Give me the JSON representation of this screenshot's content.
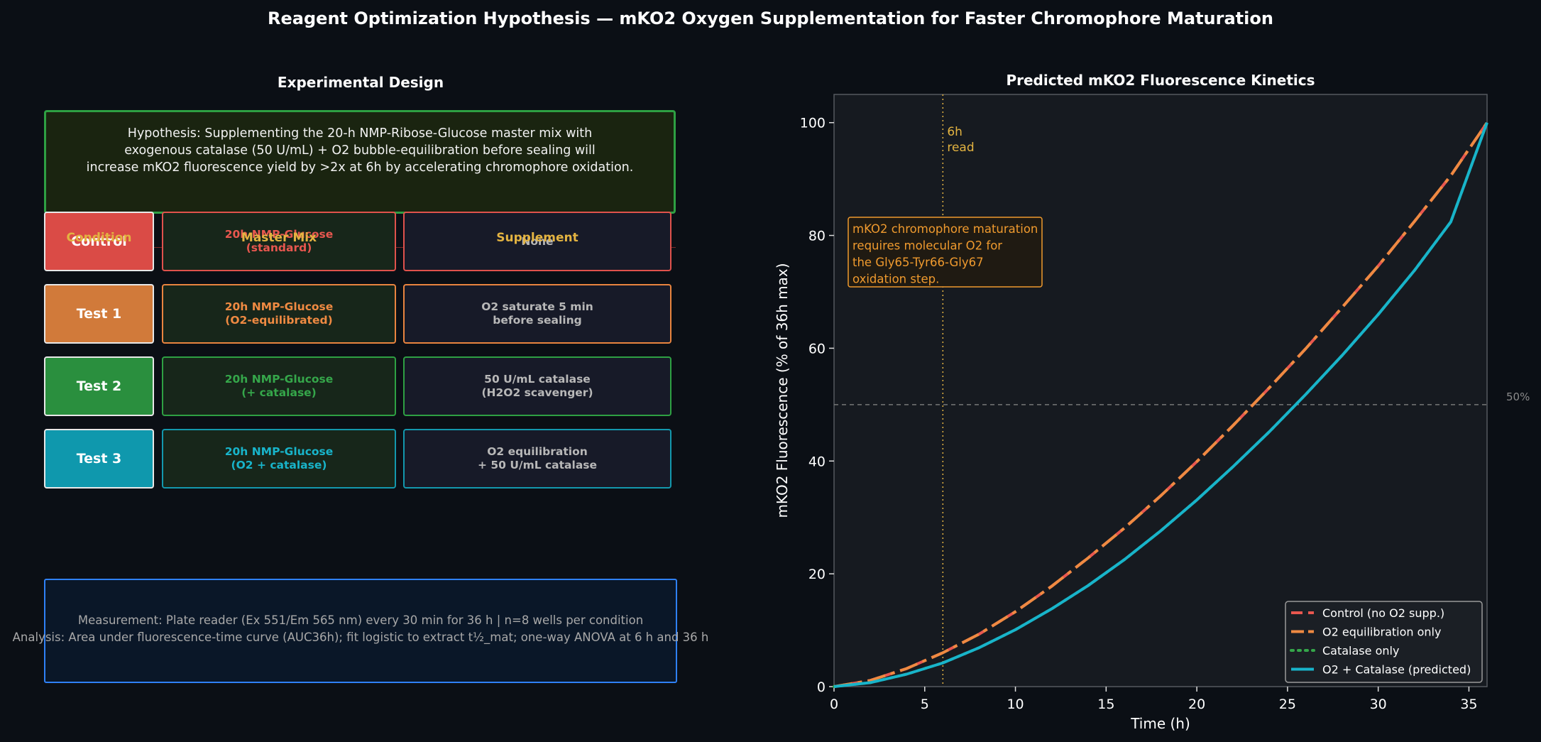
{
  "title": "Reagent Optimization Hypothesis — mKO2 Oxygen Supplementation for Faster Chromophore Maturation",
  "design": {
    "title": "Experimental Design",
    "hypothesis_lines": [
      "Hypothesis: Supplementing the 20-h NMP-Ribose-Glucose master mix with",
      "exogenous catalase (50 U/mL) + O2 bubble-equilibration before sealing will",
      "increase mKO2 fluorescence yield by >2x at 6h by accelerating chromophore oxidation."
    ],
    "headers": [
      "Condition",
      "Master Mix",
      "Supplement"
    ],
    "rows": [
      {
        "condition": "Control",
        "mix": [
          "20h NMP-Glucose",
          "(standard)"
        ],
        "supplement": [
          "None"
        ],
        "color": "#da4b46"
      },
      {
        "condition": "Test 1",
        "mix": [
          "20h NMP-Glucose",
          "(O2-equilibrated)"
        ],
        "supplement": [
          "O2 saturate 5 min",
          "before sealing"
        ],
        "color": "#d17a3a"
      },
      {
        "condition": "Test 2",
        "mix": [
          "20h NMP-Glucose",
          "(+ catalase)"
        ],
        "supplement": [
          "50 U/mL catalase",
          "(H2O2 scavenger)"
        ],
        "color": "#2a8f3e"
      },
      {
        "condition": "Test 3",
        "mix": [
          "20h NMP-Glucose",
          "(O2 + catalase)"
        ],
        "supplement": [
          "O2 equilibration",
          "+ 50 U/mL catalase"
        ],
        "color": "#0f98ad"
      }
    ],
    "mix_colors": [
      "#e8574f",
      "#ef8a42",
      "#35a64a",
      "#18b4ca"
    ],
    "border_colors": [
      "#e0524c",
      "#e9843f",
      "#2ea043",
      "#1398ad"
    ],
    "measurement_lines": [
      "Measurement: Plate reader (Ex 551/Em 565 nm) every 30 min for 36 h | n=8 wells per condition",
      "Analysis: Area under fluorescence-time curve (AUC36h); fit logistic to extract t½_mat; one-way ANOVA at 6 h and 36 h"
    ]
  },
  "chart_data": {
    "type": "line",
    "title": "Predicted mKO2 Fluorescence Kinetics",
    "xlabel": "Time (h)",
    "ylabel": "mKO2 Fluorescence (% of 36h max)",
    "xlim": [
      0,
      36
    ],
    "ylim": [
      0,
      105
    ],
    "xticks": [
      0,
      5,
      10,
      15,
      20,
      25,
      30,
      35
    ],
    "yticks": [
      0,
      20,
      40,
      60,
      80,
      100
    ],
    "grid": false,
    "legend_position": "bottom-right",
    "x": [
      0,
      2,
      4,
      6,
      8,
      10,
      12,
      14,
      16,
      18,
      20,
      22,
      24,
      26,
      28,
      30,
      32,
      34,
      36
    ],
    "series": [
      {
        "name": "Control (no O2 supp.)",
        "color": "#e8574f",
        "style": "dashed",
        "values": [
          0,
          1.1,
          3.2,
          6.0,
          9.3,
          13.3,
          17.8,
          22.8,
          28.1,
          33.8,
          39.9,
          46.3,
          53.0,
          59.9,
          67.2,
          74.6,
          82.5,
          90.6,
          100
        ]
      },
      {
        "name": "O2 equilibration only",
        "color": "#ef8a42",
        "style": "dashdot",
        "values": [
          0,
          1.1,
          3.2,
          6.0,
          9.3,
          13.3,
          17.8,
          22.8,
          28.1,
          33.8,
          39.9,
          46.3,
          53.0,
          59.9,
          67.2,
          74.6,
          82.5,
          90.6,
          100
        ]
      },
      {
        "name": "Catalase only",
        "color": "#35a64a",
        "style": "dotted",
        "values": [
          0,
          0.7,
          2.2,
          4.2,
          6.9,
          10.1,
          13.8,
          17.9,
          22.5,
          27.6,
          33.1,
          39.0,
          45.2,
          51.8,
          58.7,
          66.0,
          73.8,
          82.4,
          100
        ]
      },
      {
        "name": "O2 + Catalase (predicted)",
        "color": "#18b4ca",
        "style": "solid",
        "values": [
          0,
          0.7,
          2.2,
          4.2,
          6.9,
          10.1,
          13.8,
          17.9,
          22.5,
          27.6,
          33.1,
          39.0,
          45.2,
          51.8,
          58.7,
          66.0,
          73.8,
          82.4,
          100
        ]
      }
    ],
    "vline": {
      "x": 6,
      "label_lines": [
        "6h",
        "read"
      ],
      "color": "#e3b341"
    },
    "hline": {
      "y": 50,
      "label": "50%",
      "color": "#777777"
    },
    "annotation": {
      "lines": [
        "mKO2 chromophore maturation",
        "requires molecular O2 for",
        "the Gly65-Tyr66-Gly67",
        "oxidation step."
      ],
      "x": 1,
      "y": 82,
      "color": "#ef9a2e"
    }
  }
}
